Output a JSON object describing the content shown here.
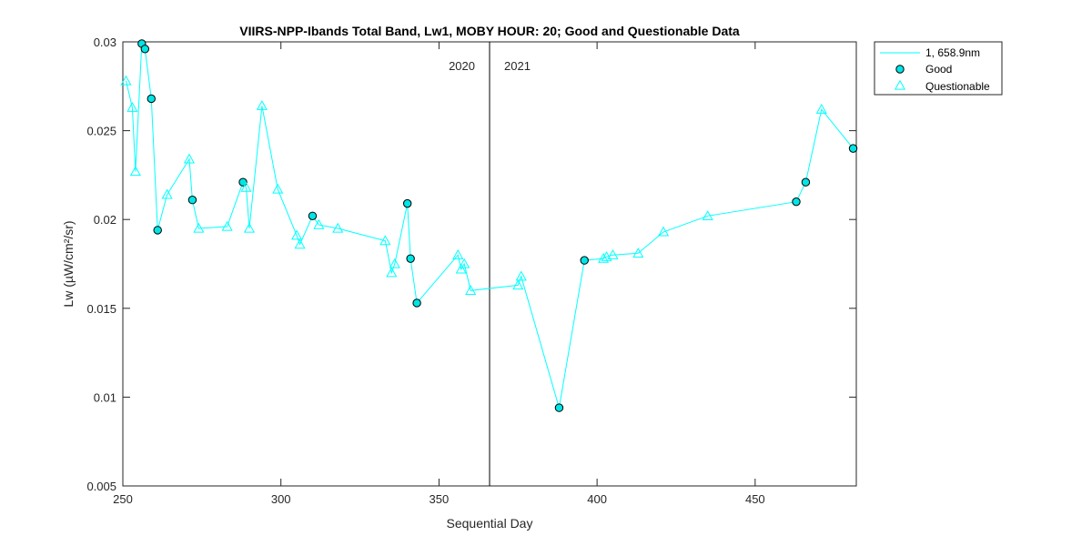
{
  "chart_data": {
    "type": "line",
    "title": "VIIRS-NPP-Ibands Total Band,  Lw1, MOBY HOUR: 20;  Good and Questionable Data",
    "xlabel": "Sequential Day",
    "ylabel": "Lw (µW/cm²/sr)",
    "xlim": [
      250,
      482
    ],
    "ylim": [
      0.005,
      0.03
    ],
    "xticks": [
      250,
      300,
      350,
      400,
      450
    ],
    "yticks": [
      0.005,
      0.01,
      0.015,
      0.02,
      0.025,
      0.03
    ],
    "ytick_labels": [
      "0.005",
      "0.01",
      "0.015",
      "0.02",
      "0.025",
      "0.03"
    ],
    "grid": false,
    "legend_position": "outside top-right",
    "year_divider": {
      "x": 366,
      "left_label": "2020",
      "right_label": "2021"
    },
    "colors": {
      "series": "#00ffff",
      "marker_fill": "#00e5e5",
      "marker_edge": "#000000",
      "axis": "#262626"
    },
    "series": [
      {
        "name": "1, 658.9nm",
        "points": [
          {
            "x": 251,
            "y": 0.0278,
            "q": "Q"
          },
          {
            "x": 253,
            "y": 0.0263,
            "q": "Q"
          },
          {
            "x": 254,
            "y": 0.0227,
            "q": "Q"
          },
          {
            "x": 256,
            "y": 0.0299,
            "q": "G"
          },
          {
            "x": 257,
            "y": 0.0296,
            "q": "G"
          },
          {
            "x": 259,
            "y": 0.0268,
            "q": "G"
          },
          {
            "x": 261,
            "y": 0.0194,
            "q": "G"
          },
          {
            "x": 264,
            "y": 0.0214,
            "q": "Q"
          },
          {
            "x": 271,
            "y": 0.0234,
            "q": "Q"
          },
          {
            "x": 272,
            "y": 0.0211,
            "q": "G"
          },
          {
            "x": 274,
            "y": 0.0195,
            "q": "Q"
          },
          {
            "x": 283,
            "y": 0.0196,
            "q": "Q"
          },
          {
            "x": 288,
            "y": 0.0221,
            "q": "G"
          },
          {
            "x": 289,
            "y": 0.0218,
            "q": "Q"
          },
          {
            "x": 290,
            "y": 0.0195,
            "q": "Q"
          },
          {
            "x": 294,
            "y": 0.0264,
            "q": "Q"
          },
          {
            "x": 299,
            "y": 0.0217,
            "q": "Q"
          },
          {
            "x": 305,
            "y": 0.0191,
            "q": "Q"
          },
          {
            "x": 306,
            "y": 0.0186,
            "q": "Q"
          },
          {
            "x": 310,
            "y": 0.0202,
            "q": "G"
          },
          {
            "x": 312,
            "y": 0.0197,
            "q": "Q"
          },
          {
            "x": 318,
            "y": 0.0195,
            "q": "Q"
          },
          {
            "x": 333,
            "y": 0.0188,
            "q": "Q"
          },
          {
            "x": 335,
            "y": 0.017,
            "q": "Q"
          },
          {
            "x": 336,
            "y": 0.0175,
            "q": "Q"
          },
          {
            "x": 340,
            "y": 0.0209,
            "q": "G"
          },
          {
            "x": 341,
            "y": 0.0178,
            "q": "G"
          },
          {
            "x": 343,
            "y": 0.0153,
            "q": "G"
          },
          {
            "x": 356,
            "y": 0.018,
            "q": "Q"
          },
          {
            "x": 357,
            "y": 0.0172,
            "q": "Q"
          },
          {
            "x": 358,
            "y": 0.0175,
            "q": "Q"
          },
          {
            "x": 360,
            "y": 0.016,
            "q": "Q"
          },
          {
            "x": 375,
            "y": 0.0163,
            "q": "Q"
          },
          {
            "x": 376,
            "y": 0.0168,
            "q": "Q"
          },
          {
            "x": 388,
            "y": 0.0094,
            "q": "G"
          },
          {
            "x": 396,
            "y": 0.0177,
            "q": "G"
          },
          {
            "x": 402,
            "y": 0.0178,
            "q": "Q"
          },
          {
            "x": 403,
            "y": 0.0179,
            "q": "Q"
          },
          {
            "x": 405,
            "y": 0.018,
            "q": "Q"
          },
          {
            "x": 413,
            "y": 0.0181,
            "q": "Q"
          },
          {
            "x": 421,
            "y": 0.0193,
            "q": "Q"
          },
          {
            "x": 435,
            "y": 0.0202,
            "q": "Q"
          },
          {
            "x": 463,
            "y": 0.021,
            "q": "G"
          },
          {
            "x": 466,
            "y": 0.0221,
            "q": "G"
          },
          {
            "x": 471,
            "y": 0.0262,
            "q": "Q"
          },
          {
            "x": 481,
            "y": 0.024,
            "q": "G"
          }
        ]
      }
    ],
    "legend": {
      "line_label": "1, 658.9nm",
      "good_label": "Good",
      "questionable_label": "Questionable"
    }
  }
}
